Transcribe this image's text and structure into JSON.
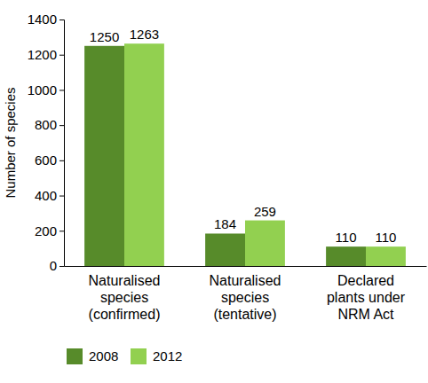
{
  "chart_data": {
    "type": "bar",
    "y_label": "Number of species",
    "categories": [
      "Naturalised\nspecies\n(confirmed)",
      "Naturalised\nspecies\n(tentative)",
      "Declared\nplants under\nNRM Act"
    ],
    "series": [
      {
        "name": "2008",
        "color": "#578b2a",
        "values": [
          1250,
          184,
          110
        ]
      },
      {
        "name": "2012",
        "color": "#92d050",
        "values": [
          1263,
          259,
          110
        ]
      }
    ],
    "ylim": [
      0,
      1400
    ],
    "yticks": [
      0,
      200,
      400,
      600,
      800,
      1000,
      1200,
      1400
    ],
    "grid": false,
    "data_labels": true,
    "legend": "bottom"
  }
}
